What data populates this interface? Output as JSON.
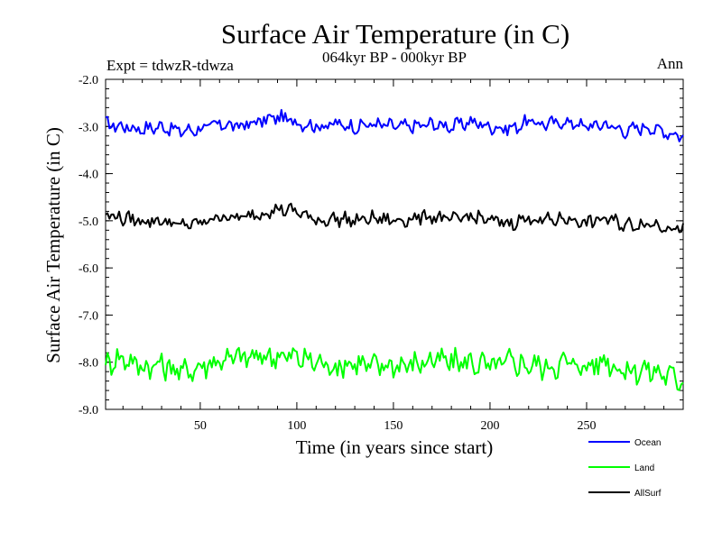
{
  "chart_data": {
    "type": "line",
    "title": "Surface Air Temperature (in C)",
    "subtitle": "064kyr BP - 000kyr BP",
    "left_note": "Expt = tdwzR-tdwza",
    "right_note": "Ann",
    "xlabel": "Time (in years since start)",
    "ylabel": "Surface Air Temperature (in C)",
    "xlim": [
      1,
      300
    ],
    "ylim": [
      -9.0,
      -2.0
    ],
    "xticks": [
      50,
      100,
      150,
      200,
      250
    ],
    "yticks": [
      -2.0,
      -3.0,
      -4.0,
      -5.0,
      -6.0,
      -7.0,
      -8.0,
      -9.0
    ],
    "ytick_labels": [
      "-2.0",
      "-3.0",
      "-4.0",
      "-5.0",
      "-6.0",
      "-7.0",
      "-8.0",
      "-9.0"
    ],
    "grid": false,
    "legend_position": "bottom-right, below plot",
    "series": [
      {
        "name": "Ocean",
        "color": "#0000ff",
        "x": [
          1,
          10,
          20,
          30,
          40,
          50,
          60,
          70,
          80,
          90,
          100,
          110,
          120,
          130,
          140,
          150,
          160,
          170,
          180,
          190,
          200,
          210,
          220,
          230,
          240,
          250,
          260,
          270,
          280,
          290,
          300
        ],
        "values": [
          -2.95,
          -3.0,
          -3.05,
          -3.0,
          -3.1,
          -3.05,
          -2.95,
          -3.0,
          -2.9,
          -2.8,
          -2.9,
          -3.0,
          -2.95,
          -3.0,
          -2.95,
          -3.0,
          -3.0,
          -2.95,
          -3.0,
          -2.9,
          -3.0,
          -3.05,
          -2.9,
          -2.95,
          -2.9,
          -3.0,
          -2.95,
          -3.1,
          -3.0,
          -3.1,
          -3.2
        ]
      },
      {
        "name": "Land",
        "color": "#00ff00",
        "x": [
          1,
          10,
          20,
          30,
          40,
          50,
          60,
          70,
          80,
          90,
          100,
          110,
          120,
          130,
          140,
          150,
          160,
          170,
          180,
          190,
          200,
          210,
          220,
          230,
          240,
          250,
          260,
          270,
          280,
          290,
          300
        ],
        "values": [
          -8.0,
          -7.9,
          -8.1,
          -8.05,
          -8.2,
          -8.1,
          -7.95,
          -7.9,
          -7.9,
          -7.85,
          -7.9,
          -8.0,
          -8.1,
          -8.0,
          -8.1,
          -8.05,
          -8.05,
          -7.95,
          -8.0,
          -8.0,
          -8.1,
          -8.0,
          -8.05,
          -8.1,
          -8.0,
          -8.1,
          -7.95,
          -8.2,
          -8.15,
          -8.25,
          -8.4
        ]
      },
      {
        "name": "AllSurf",
        "color": "#000000",
        "x": [
          1,
          10,
          20,
          30,
          40,
          50,
          60,
          70,
          80,
          90,
          100,
          110,
          120,
          130,
          140,
          150,
          160,
          170,
          180,
          190,
          200,
          210,
          220,
          230,
          240,
          250,
          260,
          270,
          280,
          290,
          300
        ],
        "values": [
          -4.85,
          -4.95,
          -5.0,
          -5.0,
          -5.1,
          -5.05,
          -4.9,
          -4.95,
          -4.85,
          -4.75,
          -4.8,
          -5.0,
          -4.95,
          -5.0,
          -4.95,
          -5.0,
          -4.95,
          -4.9,
          -5.0,
          -4.9,
          -5.0,
          -5.05,
          -4.95,
          -5.0,
          -4.95,
          -5.05,
          -4.95,
          -5.1,
          -5.05,
          -5.1,
          -5.2
        ]
      }
    ]
  }
}
